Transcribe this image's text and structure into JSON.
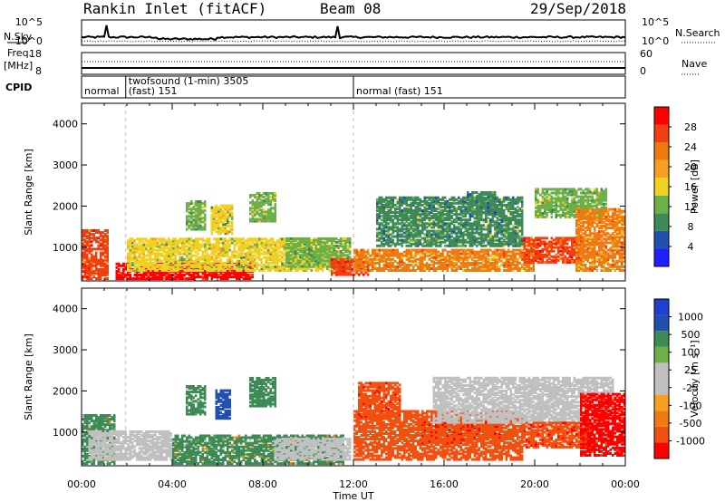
{
  "header": {
    "station": "Rankin Inlet (fitACF)",
    "beam": "Beam 08",
    "date": "29/Sep/2018"
  },
  "panel_labels": {
    "nsky": "N.Sky",
    "nsearch": "N.Search",
    "freq_line1": "Freq.",
    "freq_line2": "[MHz]",
    "nave": "Nave",
    "cpid": "CPID"
  },
  "noise_axis": {
    "left_top": "10^5",
    "left_bottom": "10^0",
    "right_top": "10^5",
    "right_bottom": "10^0"
  },
  "freq_axis": {
    "left_top": "18",
    "left_bottom": "8",
    "right_top": "60",
    "right_bottom": "0"
  },
  "cpid_segments": [
    {
      "label": "normal",
      "start_hr": 0.0,
      "end_hr": 1.95
    },
    {
      "label_line1": "twofsound (1-min) 3505",
      "label_line2": "(fast) 151",
      "start_hr": 1.95,
      "end_hr": 12.0
    },
    {
      "label": "normal (fast) 151",
      "start_hr": 12.0,
      "end_hr": 24.0
    }
  ],
  "colors": {
    "power_scale": [
      "#1f1fff",
      "#2050b0",
      "#3e8a57",
      "#6cb04a",
      "#f0d020",
      "#f7a020",
      "#f07a10",
      "#f04010",
      "#ff0000"
    ],
    "velocity_scale": [
      "#ff0000",
      "#f05010",
      "#f07a10",
      "#f7a020",
      "#c0c0c0",
      "#c0c0c0",
      "#6cb04a",
      "#3e8a57",
      "#2050b0",
      "#1f3fd0"
    ],
    "ground_scatter": "#c0c0c0"
  },
  "x_axis": {
    "label": "Time UT",
    "ticks": [
      "00:00",
      "04:00",
      "08:00",
      "12:00",
      "16:00",
      "20:00",
      "00:00"
    ]
  },
  "chart_data": [
    {
      "type": "heatmap",
      "title": "Power",
      "ylabel": "Slant Range [km]",
      "xlabel": "Time UT",
      "xlim_hours": [
        0,
        24
      ],
      "ylim": [
        180,
        4500
      ],
      "yticks": [
        1000,
        2000,
        3000,
        4000
      ],
      "colorbar": {
        "label": "Power [dB]",
        "tick_labels": [
          "4",
          "8",
          "12",
          "16",
          "20",
          "24",
          "28"
        ],
        "range": [
          0,
          30
        ]
      },
      "regions": [
        {
          "t0": 0.0,
          "t1": 1.2,
          "r0": 200,
          "r1": 1400,
          "value": 24
        },
        {
          "t0": 1.5,
          "t1": 7.5,
          "r0": 200,
          "r1": 600,
          "value": 28
        },
        {
          "t0": 2.0,
          "t1": 11.0,
          "r0": 400,
          "r1": 1200,
          "value": 14
        },
        {
          "t0": 4.6,
          "t1": 5.4,
          "r0": 1400,
          "r1": 2100,
          "value": 12
        },
        {
          "t0": 5.7,
          "t1": 6.6,
          "r0": 1300,
          "r1": 2000,
          "value": 14
        },
        {
          "t0": 7.4,
          "t1": 8.5,
          "r0": 1600,
          "r1": 2300,
          "value": 13
        },
        {
          "t0": 9.0,
          "t1": 11.8,
          "r0": 500,
          "r1": 1200,
          "value": 12
        },
        {
          "t0": 11.0,
          "t1": 12.6,
          "r0": 300,
          "r1": 700,
          "value": 26
        },
        {
          "t0": 12.0,
          "t1": 20.0,
          "r0": 400,
          "r1": 900,
          "value": 20
        },
        {
          "t0": 13.0,
          "t1": 19.5,
          "r0": 1000,
          "r1": 2200,
          "value": 9
        },
        {
          "t0": 17.0,
          "t1": 18.3,
          "r0": 1800,
          "r1": 2300,
          "value": 8
        },
        {
          "t0": 19.5,
          "t1": 22.0,
          "r0": 600,
          "r1": 1200,
          "value": 24
        },
        {
          "t0": 20.0,
          "t1": 23.2,
          "r0": 1700,
          "r1": 2400,
          "value": 12
        },
        {
          "t0": 21.8,
          "t1": 24.0,
          "r0": 400,
          "r1": 1900,
          "value": 20
        }
      ]
    },
    {
      "type": "heatmap",
      "title": "Velocity",
      "ylabel": "Slant Range [km]",
      "xlabel": "Time UT",
      "xlim_hours": [
        0,
        24
      ],
      "ylim": [
        180,
        4500
      ],
      "yticks": [
        1000,
        2000,
        3000,
        4000
      ],
      "colorbar": {
        "label": "Velocity [m s⁻¹]",
        "tick_labels": [
          "1000",
          "500",
          "100",
          "25",
          "-25",
          "-100",
          "-500",
          "-1000"
        ],
        "range": [
          -1000,
          1000
        ]
      },
      "regions": [
        {
          "t0": 0.0,
          "t1": 1.5,
          "r0": 200,
          "r1": 1400,
          "value": 150,
          "ground": false
        },
        {
          "t0": 0.3,
          "t1": 4.0,
          "r0": 300,
          "r1": 1000,
          "value": 0,
          "ground": true
        },
        {
          "t0": 4.0,
          "t1": 11.5,
          "r0": 200,
          "r1": 900,
          "value": 120,
          "ground": false
        },
        {
          "t0": 4.6,
          "t1": 5.4,
          "r0": 1400,
          "r1": 2100,
          "value": 200,
          "ground": false
        },
        {
          "t0": 5.9,
          "t1": 6.5,
          "r0": 1300,
          "r1": 2000,
          "value": 900,
          "ground": false
        },
        {
          "t0": 7.4,
          "t1": 8.5,
          "r0": 1600,
          "r1": 2300,
          "value": 300,
          "ground": false
        },
        {
          "t0": 8.5,
          "t1": 11.8,
          "r0": 300,
          "r1": 800,
          "value": 0,
          "ground": true
        },
        {
          "t0": 12.0,
          "t1": 19.5,
          "r0": 300,
          "r1": 1500,
          "value": -300,
          "ground": false
        },
        {
          "t0": 12.2,
          "t1": 14.0,
          "r0": 1300,
          "r1": 2200,
          "value": -400,
          "ground": false
        },
        {
          "t0": 15.0,
          "t1": 18.5,
          "r0": 700,
          "r1": 1200,
          "value": -500,
          "ground": false
        },
        {
          "t0": 15.5,
          "t1": 23.5,
          "r0": 1200,
          "r1": 2300,
          "value": 0,
          "ground": true
        },
        {
          "t0": 19.5,
          "t1": 22.5,
          "r0": 600,
          "r1": 1200,
          "value": -450,
          "ground": false
        },
        {
          "t0": 22.0,
          "t1": 24.0,
          "r0": 400,
          "r1": 1900,
          "value": -600,
          "ground": false
        }
      ]
    }
  ]
}
